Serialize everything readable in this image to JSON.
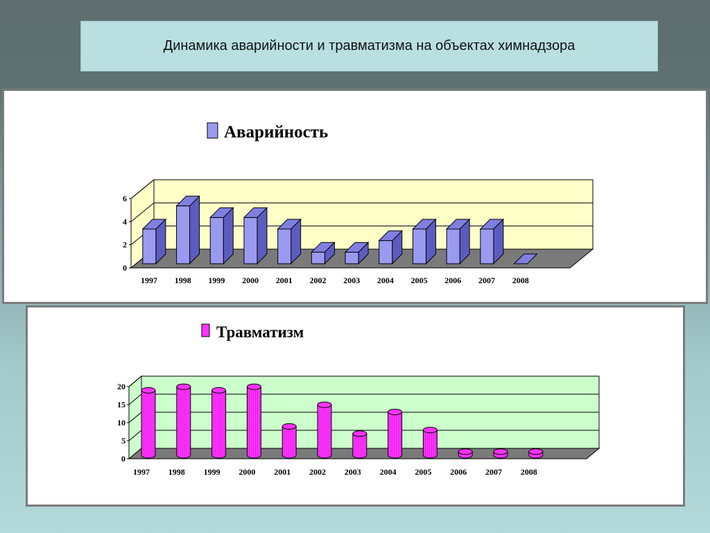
{
  "page": {
    "title": "Динамика аварийности и травматизма на объектах химнадзора"
  },
  "colors": {
    "bar1_front": "#9a9af0",
    "bar1_side": "#5c5cc0",
    "bar1_top": "#7f7fe0",
    "wall1": "#ffffc8",
    "floor": "#7a7a7a",
    "bar2_front": "#ff33ff",
    "bar2_side": "#b000b0",
    "wall2": "#ccffcc"
  },
  "chart_data": [
    {
      "type": "bar",
      "legend": [
        "Аварийность"
      ],
      "categories": [
        "1997",
        "1998",
        "1999",
        "2000",
        "2001",
        "2002",
        "2003",
        "2004",
        "2005",
        "2006",
        "2007",
        "2008"
      ],
      "series": [
        {
          "name": "Аварийность",
          "values": [
            3,
            5,
            4,
            4,
            3,
            1,
            1,
            2,
            3,
            3,
            3,
            0
          ]
        }
      ],
      "yticks": [
        "0",
        "2",
        "4",
        "6"
      ],
      "ylim": [
        0,
        6
      ],
      "grid": true,
      "style": "3d-column"
    },
    {
      "type": "bar",
      "legend": [
        "Травматизм"
      ],
      "categories": [
        "1997",
        "1998",
        "1999",
        "2000",
        "2001",
        "2002",
        "2003",
        "2004",
        "2005",
        "2006",
        "2007",
        "2008"
      ],
      "series": [
        {
          "name": "Травматизм",
          "values": [
            18,
            19,
            18,
            19,
            8,
            14,
            6,
            12,
            7,
            1,
            1,
            1
          ]
        }
      ],
      "yticks": [
        "0",
        "5",
        "10",
        "15",
        "20"
      ],
      "ylim": [
        0,
        20
      ],
      "grid": true,
      "style": "3d-cylinder"
    }
  ]
}
